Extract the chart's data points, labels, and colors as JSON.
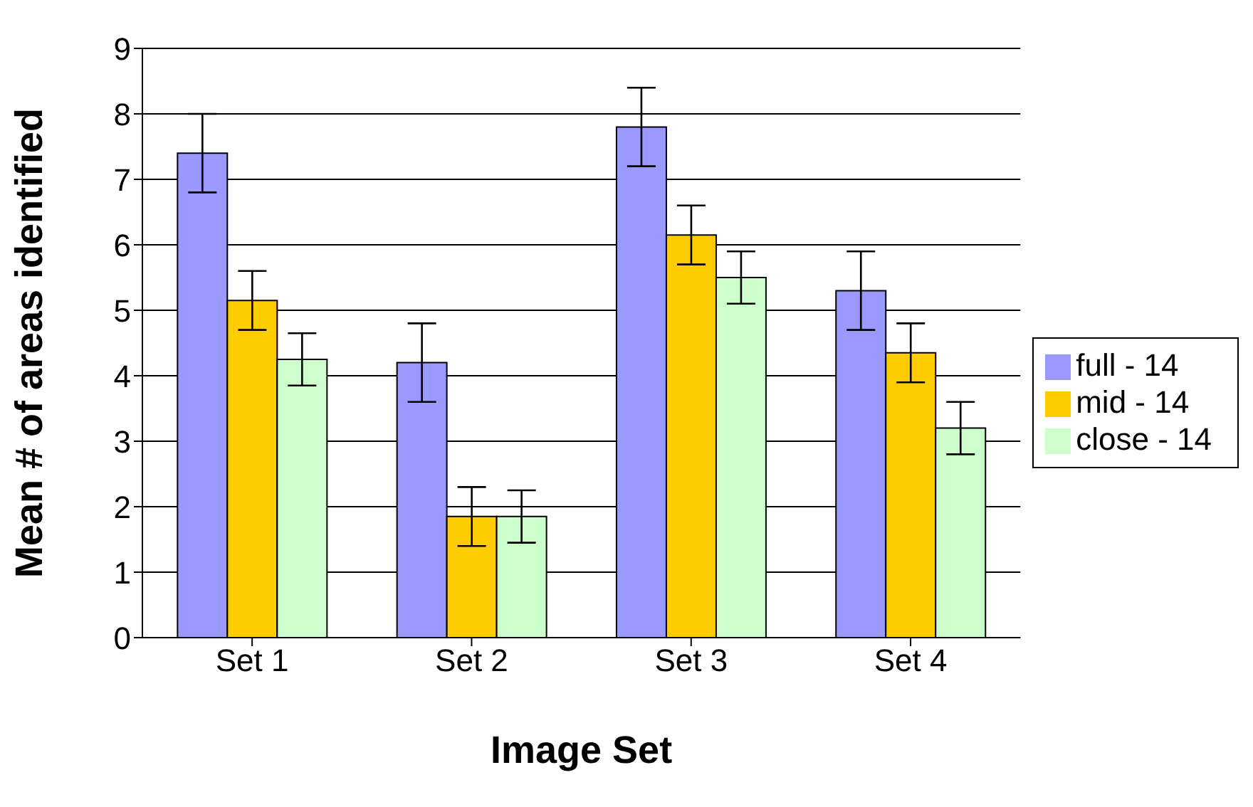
{
  "chart_data": {
    "type": "bar",
    "xlabel": "Image Set",
    "ylabel": "Mean # of areas identified",
    "categories": [
      "Set 1",
      "Set 2",
      "Set 3",
      "Set 4"
    ],
    "series": [
      {
        "name": "full - 14",
        "color": "#9999ff",
        "values": [
          7.4,
          4.2,
          7.8,
          5.3
        ],
        "errors": [
          0.6,
          0.6,
          0.6,
          0.6
        ]
      },
      {
        "name": "mid - 14",
        "color": "#ffcc00",
        "values": [
          5.15,
          1.85,
          6.15,
          4.35
        ],
        "errors": [
          0.45,
          0.45,
          0.45,
          0.45
        ]
      },
      {
        "name": "close - 14",
        "color": "#ccffcc",
        "values": [
          4.25,
          1.85,
          5.5,
          3.2
        ],
        "errors": [
          0.4,
          0.4,
          0.4,
          0.4
        ]
      }
    ],
    "ylim": [
      0,
      9
    ],
    "yticks": [
      0,
      1,
      2,
      3,
      4,
      5,
      6,
      7,
      8,
      9
    ],
    "grid": "y",
    "legend": "right"
  }
}
